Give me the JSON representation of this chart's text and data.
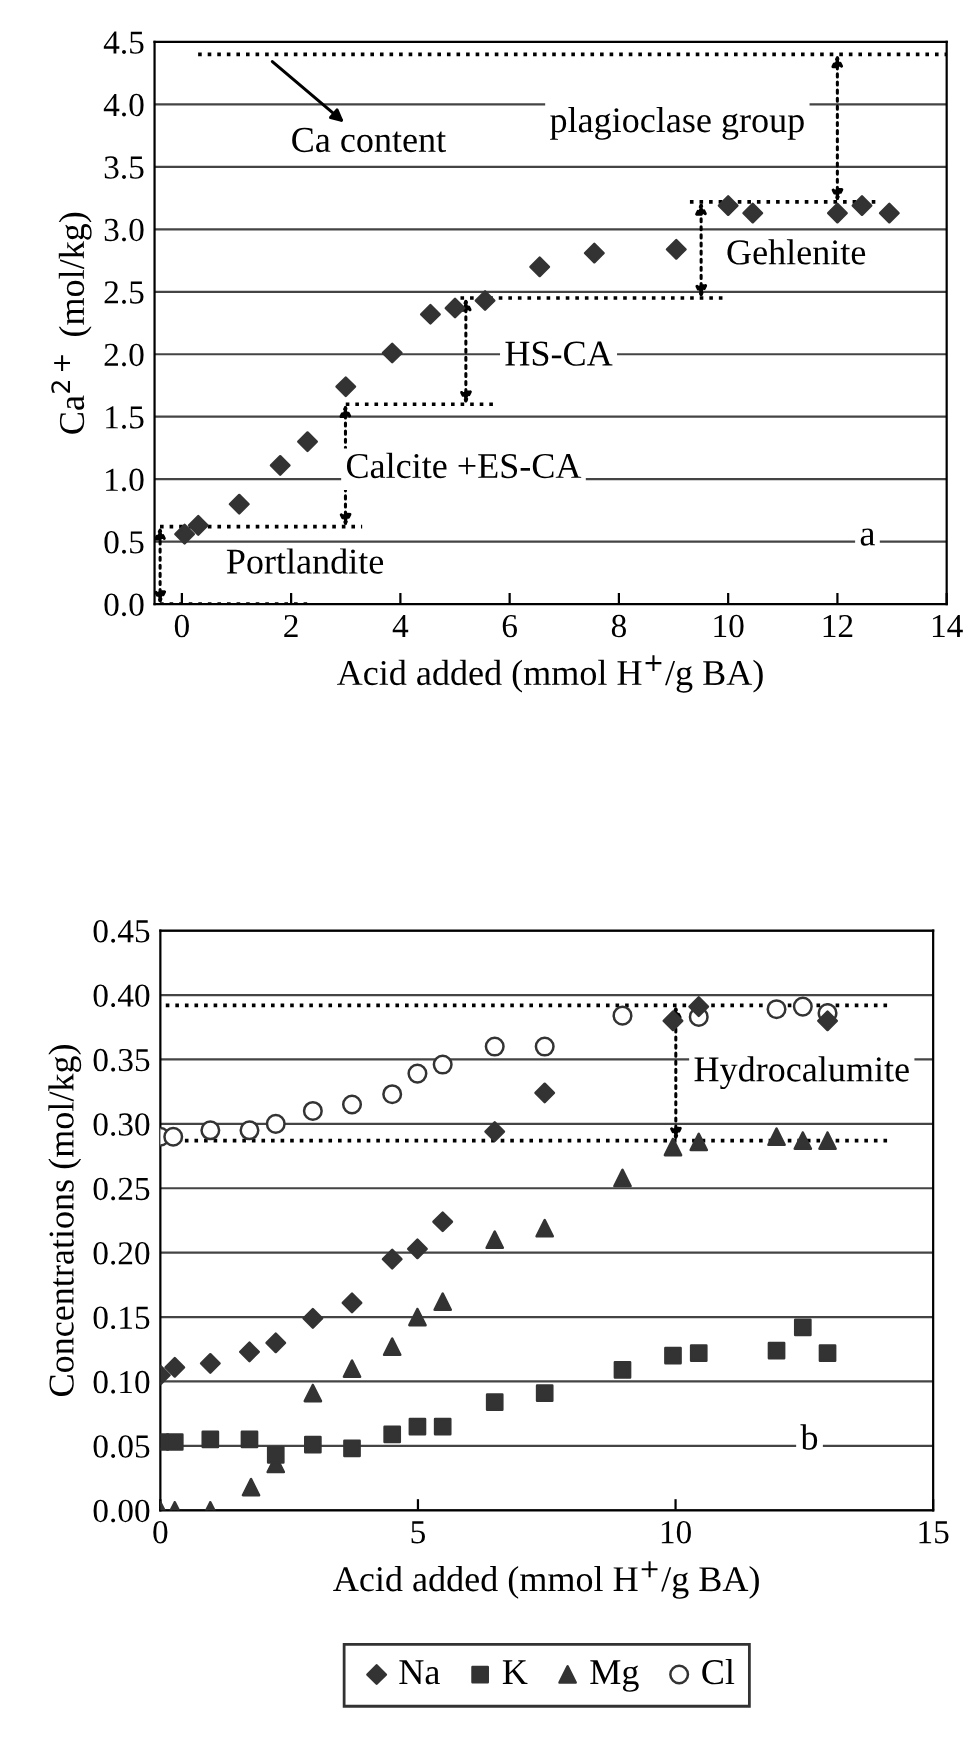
{
  "chart_data": [
    {
      "type": "scatter",
      "xlabel": "Acid added (mmol H$^{+}$/g BA)",
      "ylabel": "Ca$^{2+}$ (mol/kg)",
      "xlim": [
        -0.5,
        14
      ],
      "xticks": [
        0,
        2,
        4,
        6,
        8,
        10,
        12,
        14
      ],
      "ylim": [
        0,
        4.5
      ],
      "yticks": [
        {
          "value": 0,
          "label": "0.0"
        },
        0.5,
        {
          "value": 1,
          "label": "1.0"
        },
        1.5,
        {
          "value": 2,
          "label": "2.0"
        },
        2.5,
        {
          "value": 3,
          "label": "3.0"
        },
        3.5,
        {
          "value": 4,
          "label": "4.0"
        },
        4.5
      ],
      "grid": "y",
      "series": [
        {
          "marker": "diamond",
          "color": "#333333",
          "x": [
            0.05,
            0.3,
            1.05,
            1.8,
            2.3,
            3.0,
            3.85,
            4.55,
            5.0,
            5.55,
            6.55,
            7.55,
            9.05,
            10.0,
            10.45,
            12.0,
            12.45,
            12.95
          ],
          "values": [
            0.56,
            0.63,
            0.8,
            1.11,
            1.3,
            1.74,
            2.01,
            2.32,
            2.37,
            2.43,
            2.7,
            2.81,
            2.84,
            3.19,
            3.13,
            3.13,
            3.19,
            3.13
          ]
        },
        {
          "type": "line",
          "line_style": "dotted",
          "color": "#000000",
          "x": [
            9.3,
            12.8
          ],
          "values": [
            3.22,
            3.22
          ]
        },
        {
          "type": "line",
          "line_style": "dotted",
          "color": "#000000",
          "x": [
            5.1,
            9.9
          ],
          "values": [
            2.45,
            2.45
          ]
        },
        {
          "type": "line",
          "line_style": "dotted",
          "color": "#000000",
          "x": [
            3.0,
            5.8
          ],
          "values": [
            1.6,
            1.6
          ]
        },
        {
          "type": "line",
          "line_style": "dotted",
          "color": "#000000",
          "x": [
            -0.4,
            3.3
          ],
          "values": [
            0.62,
            0.62
          ]
        },
        {
          "type": "line",
          "line_style": "dotted",
          "color": "#000000",
          "x": [
            -0.4,
            2.3
          ],
          "values": [
            0,
            0
          ]
        }
      ],
      "ref_lines": [
        {
          "axis": "y",
          "value": 4.4,
          "label": "Ca content",
          "line_style": "dotted",
          "color": "#000000"
        }
      ],
      "annotations": [
        "plagioclase group",
        "Gehlenite",
        "HS-CA",
        "Calcite +ES-CA",
        "Portlandite",
        "a"
      ]
    },
    {
      "type": "scatter",
      "xlabel": "Acid added (mmol H$^{+}$/g BA)",
      "ylabel": "Concentrations (mol/kg)",
      "xlim": [
        0,
        15
      ],
      "xticks": [
        0,
        5,
        10,
        15
      ],
      "ylim": [
        0,
        0.45
      ],
      "yticks": [
        {
          "value": 0,
          "label": "0.00"
        },
        0.05,
        {
          "value": 0.1,
          "label": "0.10"
        },
        0.15,
        {
          "value": 0.2,
          "label": "0.20"
        },
        0.25,
        {
          "value": 0.3,
          "label": "0.30"
        },
        0.35,
        {
          "value": 0.4,
          "label": "0.40"
        },
        0.45
      ],
      "grid": "y",
      "legend": "bottom",
      "series": [
        {
          "name": "Na",
          "marker": "diamond",
          "color": "#333333",
          "x": [
            0,
            0.28,
            0.97,
            1.73,
            2.24,
            2.96,
            3.72,
            4.5,
            4.99,
            5.48,
            6.49,
            7.46,
            9.95,
            10.45,
            12.95
          ],
          "values": [
            0.105,
            0.111,
            0.114,
            0.123,
            0.13,
            0.149,
            0.161,
            0.195,
            0.203,
            0.224,
            0.294,
            0.324,
            0.38,
            0.391,
            0.38
          ]
        },
        {
          "name": "K",
          "marker": "square",
          "color": "#333333",
          "x": [
            0,
            0.28,
            0.97,
            1.73,
            2.24,
            2.96,
            3.72,
            4.5,
            4.99,
            5.48,
            6.49,
            7.46,
            8.97,
            9.95,
            10.45,
            11.96,
            12.47,
            12.95
          ],
          "values": [
            0.053,
            0.053,
            0.055,
            0.055,
            0.043,
            0.051,
            0.048,
            0.059,
            0.065,
            0.065,
            0.084,
            0.091,
            0.109,
            0.12,
            0.122,
            0.124,
            0.142,
            0.122
          ]
        },
        {
          "name": "Mg",
          "marker": "triangle",
          "color": "#333333",
          "x": [
            0,
            0.28,
            0.97,
            1.76,
            2.24,
            2.96,
            3.72,
            4.5,
            4.99,
            5.48,
            6.49,
            7.46,
            8.97,
            9.95,
            10.45,
            11.96,
            12.47,
            12.95
          ],
          "values": [
            0,
            0,
            0,
            0.018,
            0.036,
            0.091,
            0.11,
            0.127,
            0.15,
            0.162,
            0.21,
            0.219,
            0.258,
            0.282,
            0.286,
            0.29,
            0.287,
            0.287
          ]
        },
        {
          "name": "Cl",
          "marker": "circle",
          "color": "#333333",
          "x": [
            0,
            0.25,
            0.97,
            1.73,
            2.24,
            2.96,
            3.72,
            4.5,
            4.99,
            5.48,
            6.49,
            7.46,
            8.97,
            10.45,
            11.96,
            12.47,
            12.95
          ],
          "values": [
            0.29,
            0.29,
            0.295,
            0.295,
            0.3,
            0.31,
            0.315,
            0.323,
            0.339,
            0.346,
            0.36,
            0.36,
            0.384,
            0.383,
            0.389,
            0.391,
            0.386
          ]
        }
      ],
      "ref_lines": [
        {
          "axis": "y",
          "value": 0.392,
          "line_style": "dotted",
          "color": "#000000"
        },
        {
          "axis": "y",
          "value": 0.287,
          "line_style": "dotted",
          "color": "#000000"
        }
      ],
      "annotations": [
        "Hydrocalumite",
        "b"
      ]
    }
  ]
}
